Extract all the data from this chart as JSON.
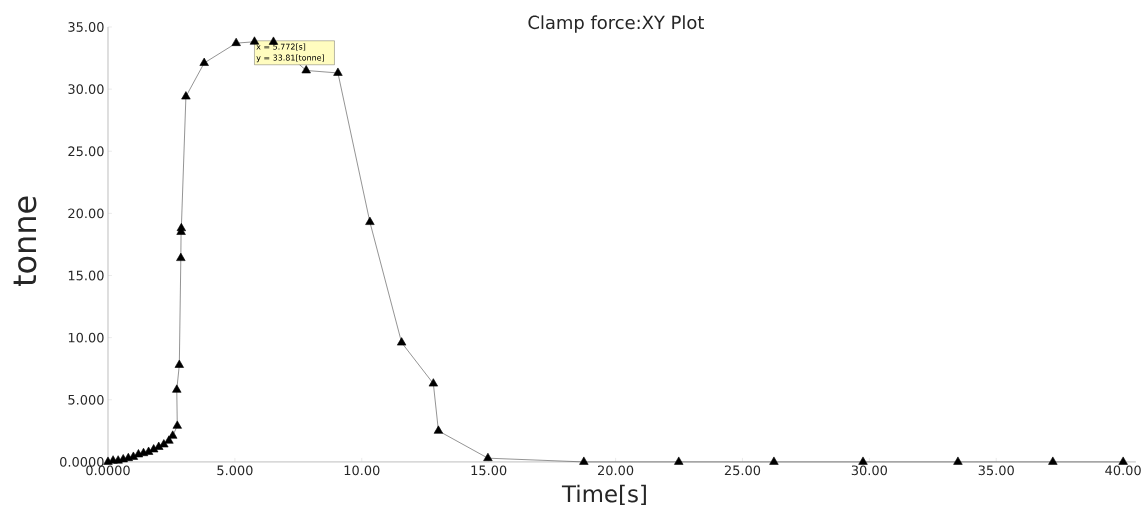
{
  "chart_data": {
    "type": "line",
    "title": "Clamp force:XY Plot",
    "xlabel": "Time[s]",
    "ylabel": "tonne",
    "marker": "triangle",
    "line_style": "solid",
    "xlim": [
      0,
      40.5
    ],
    "ylim": [
      0,
      35
    ],
    "xticks": [
      {
        "value": 0,
        "label": "0.0000"
      },
      {
        "value": 5,
        "label": "5.000"
      },
      {
        "value": 10,
        "label": "10.00"
      },
      {
        "value": 15,
        "label": "15.00"
      },
      {
        "value": 20,
        "label": "20.00"
      },
      {
        "value": 25,
        "label": "25.00"
      },
      {
        "value": 30,
        "label": "30.00"
      },
      {
        "value": 35,
        "label": "35.00"
      },
      {
        "value": 40,
        "label": "40.00"
      }
    ],
    "yticks": [
      {
        "value": 0,
        "label": "0.0000"
      },
      {
        "value": 5,
        "label": "5.000"
      },
      {
        "value": 10,
        "label": "10.00"
      },
      {
        "value": 15,
        "label": "15.00"
      },
      {
        "value": 20,
        "label": "20.00"
      },
      {
        "value": 25,
        "label": "25.00"
      },
      {
        "value": 30,
        "label": "30.00"
      },
      {
        "value": 35,
        "label": "35.00"
      }
    ],
    "annotations": [
      {
        "text": "x = 5.772[s]",
        "x": 5.772,
        "y": 33.81
      },
      {
        "text": "y = 33.81[tonne]",
        "x": 5.772,
        "y": 33.81
      }
    ],
    "series": [
      {
        "color": "#000000",
        "x": [
          0,
          0.2,
          0.4,
          0.6,
          0.8,
          1.0,
          1.2,
          1.4,
          1.6,
          1.8,
          2.0,
          2.2,
          2.4,
          2.55,
          2.73,
          2.71,
          2.81,
          2.87,
          2.88,
          2.89,
          3.07,
          3.79,
          5.05,
          5.772,
          6.52,
          7.81,
          9.06,
          10.32,
          11.57,
          12.82,
          13.02,
          14.97,
          18.75,
          22.49,
          26.24,
          29.75,
          33.49,
          37.23,
          40.0
        ],
        "values": [
          0,
          0.1,
          0.1,
          0.2,
          0.3,
          0.4,
          0.6,
          0.7,
          0.8,
          1.0,
          1.2,
          1.4,
          1.7,
          2.1,
          2.9,
          5.8,
          7.8,
          16.4,
          18.5,
          18.8,
          29.4,
          32.1,
          33.7,
          33.81,
          33.8,
          31.5,
          31.3,
          19.3,
          9.6,
          6.3,
          2.5,
          0.3,
          0,
          0,
          0,
          0,
          0,
          0,
          0
        ]
      }
    ]
  }
}
